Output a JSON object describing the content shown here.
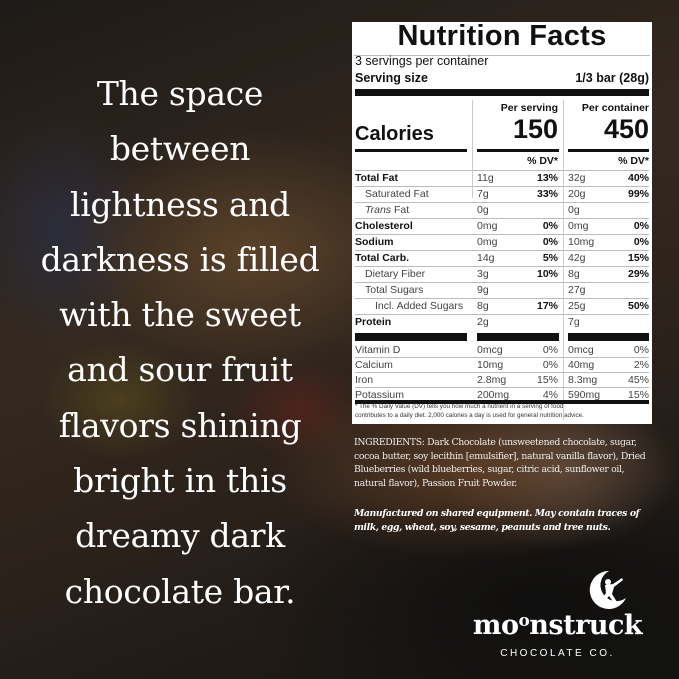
{
  "tagline": [
    "The space",
    "between",
    "lightness and",
    "darkness is filled",
    "with the sweet",
    "and sour fruit",
    "flavors shining",
    "bright in this",
    "dreamy dark",
    "chocolate bar."
  ],
  "nutrition": {
    "title": "Nutrition Facts",
    "servings": "3 servings per container",
    "serving_size_label": "Serving size",
    "serving_size_value": "1/3 bar (28g)",
    "per_serving": "Per serving",
    "per_container": "Per container",
    "calories_label": "Calories",
    "calories_serving": "150",
    "calories_container": "450",
    "dv_header": "% DV*",
    "rows": [
      {
        "name": "Total Fat",
        "bold": true,
        "indent": 0,
        "s": "11g",
        "sdv": "13%",
        "c": "32g",
        "cdv": "40%"
      },
      {
        "name": "Saturated Fat",
        "bold": false,
        "indent": 1,
        "s": "7g",
        "sdv": "33%",
        "c": "20g",
        "cdv": "99%"
      },
      {
        "name": "Trans Fat",
        "bold": false,
        "indent": 1,
        "italic_prefix": "Trans",
        "s": "0g",
        "sdv": "",
        "c": "0g",
        "cdv": ""
      },
      {
        "name": "Cholesterol",
        "bold": true,
        "indent": 0,
        "s": "0mg",
        "sdv": "0%",
        "c": "0mg",
        "cdv": "0%"
      },
      {
        "name": "Sodium",
        "bold": true,
        "indent": 0,
        "s": "0mg",
        "sdv": "0%",
        "c": "10mg",
        "cdv": "0%"
      },
      {
        "name": "Total Carb.",
        "bold": true,
        "indent": 0,
        "s": "14g",
        "sdv": "5%",
        "c": "42g",
        "cdv": "15%"
      },
      {
        "name": "Dietary Fiber",
        "bold": false,
        "indent": 1,
        "s": "3g",
        "sdv": "10%",
        "c": "8g",
        "cdv": "29%"
      },
      {
        "name": "Total Sugars",
        "bold": false,
        "indent": 1,
        "s": "9g",
        "sdv": "",
        "c": "27g",
        "cdv": ""
      },
      {
        "name": "Incl. Added Sugars",
        "bold": false,
        "indent": 2,
        "s": "8g",
        "sdv": "17%",
        "c": "25g",
        "cdv": "50%"
      },
      {
        "name": "Protein",
        "bold": true,
        "indent": 0,
        "s": "2g",
        "sdv": "",
        "c": "7g",
        "cdv": ""
      }
    ],
    "micros": [
      {
        "name": "Vitamin D",
        "s": "0mcg",
        "sdv": "0%",
        "c": "0mcg",
        "cdv": "0%"
      },
      {
        "name": "Calcium",
        "s": "10mg",
        "sdv": "0%",
        "c": "40mg",
        "cdv": "2%"
      },
      {
        "name": "Iron",
        "s": "2.8mg",
        "sdv": "15%",
        "c": "8.3mg",
        "cdv": "45%"
      },
      {
        "name": "Potassium",
        "s": "200mg",
        "sdv": "4%",
        "c": "590mg",
        "cdv": "15%"
      }
    ],
    "footnote_1": "* The % Daily Value (DV) tells you how much a nutrient in a serving of food",
    "footnote_2": "contributes to a daily diet. 2,000 calories a day is used for general nutrition advice."
  },
  "ingredients": "INGREDIENTS: Dark Chocolate (unsweetened chocolate, sugar, cocoa butter, soy lecithin [emulsifier], natural vanilla flavor), Dried Blueberries (wild blueberries, sugar, citric acid, sunflower oil, natural flavor), Passion Fruit Powder.",
  "allergy": "Manufactured on shared equipment. May contain traces of milk, egg, wheat, soy, sesame,  peanuts and tree nuts.",
  "brand": {
    "name": "moonstruck",
    "name_parts": [
      "mo",
      "o",
      "nstruck"
    ],
    "subtitle": "CHOCOLATE CO.",
    "logo_icon": "crescent-moon-explorer-icon"
  }
}
